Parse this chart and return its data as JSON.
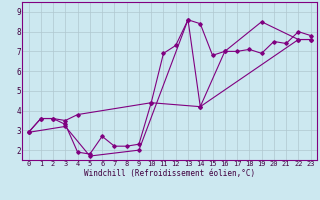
{
  "title": "",
  "xlabel": "Windchill (Refroidissement éolien,°C)",
  "bg_color": "#cce8f0",
  "line_color": "#800080",
  "grid_color": "#b0c8d0",
  "xlim": [
    -0.5,
    23.5
  ],
  "ylim": [
    1.5,
    9.5
  ],
  "xticks": [
    0,
    1,
    2,
    3,
    4,
    5,
    6,
    7,
    8,
    9,
    10,
    11,
    12,
    13,
    14,
    15,
    16,
    17,
    18,
    19,
    20,
    21,
    22,
    23
  ],
  "yticks": [
    2,
    3,
    4,
    5,
    6,
    7,
    8,
    9
  ],
  "line1": [
    [
      0,
      2.9
    ],
    [
      1,
      3.6
    ],
    [
      2,
      3.6
    ],
    [
      3,
      3.5
    ],
    [
      4,
      3.8
    ],
    [
      10,
      4.4
    ],
    [
      14,
      4.2
    ],
    [
      22,
      7.6
    ],
    [
      23,
      7.6
    ]
  ],
  "line2": [
    [
      0,
      2.9
    ],
    [
      1,
      3.6
    ],
    [
      2,
      3.6
    ],
    [
      3,
      3.3
    ],
    [
      4,
      1.9
    ],
    [
      5,
      1.8
    ],
    [
      6,
      2.7
    ],
    [
      7,
      2.2
    ],
    [
      8,
      2.2
    ],
    [
      9,
      2.3
    ],
    [
      10,
      4.4
    ],
    [
      11,
      6.9
    ],
    [
      12,
      7.3
    ],
    [
      13,
      8.6
    ],
    [
      14,
      8.4
    ],
    [
      15,
      6.8
    ],
    [
      16,
      7.0
    ],
    [
      17,
      7.0
    ],
    [
      18,
      7.1
    ],
    [
      19,
      6.9
    ],
    [
      20,
      7.5
    ],
    [
      21,
      7.4
    ],
    [
      22,
      8.0
    ],
    [
      23,
      7.8
    ]
  ],
  "line3": [
    [
      0,
      2.9
    ],
    [
      3,
      3.2
    ],
    [
      5,
      1.7
    ],
    [
      9,
      2.0
    ],
    [
      13,
      8.6
    ],
    [
      14,
      4.2
    ],
    [
      16,
      7.0
    ],
    [
      19,
      8.5
    ],
    [
      22,
      7.6
    ],
    [
      23,
      7.6
    ]
  ]
}
